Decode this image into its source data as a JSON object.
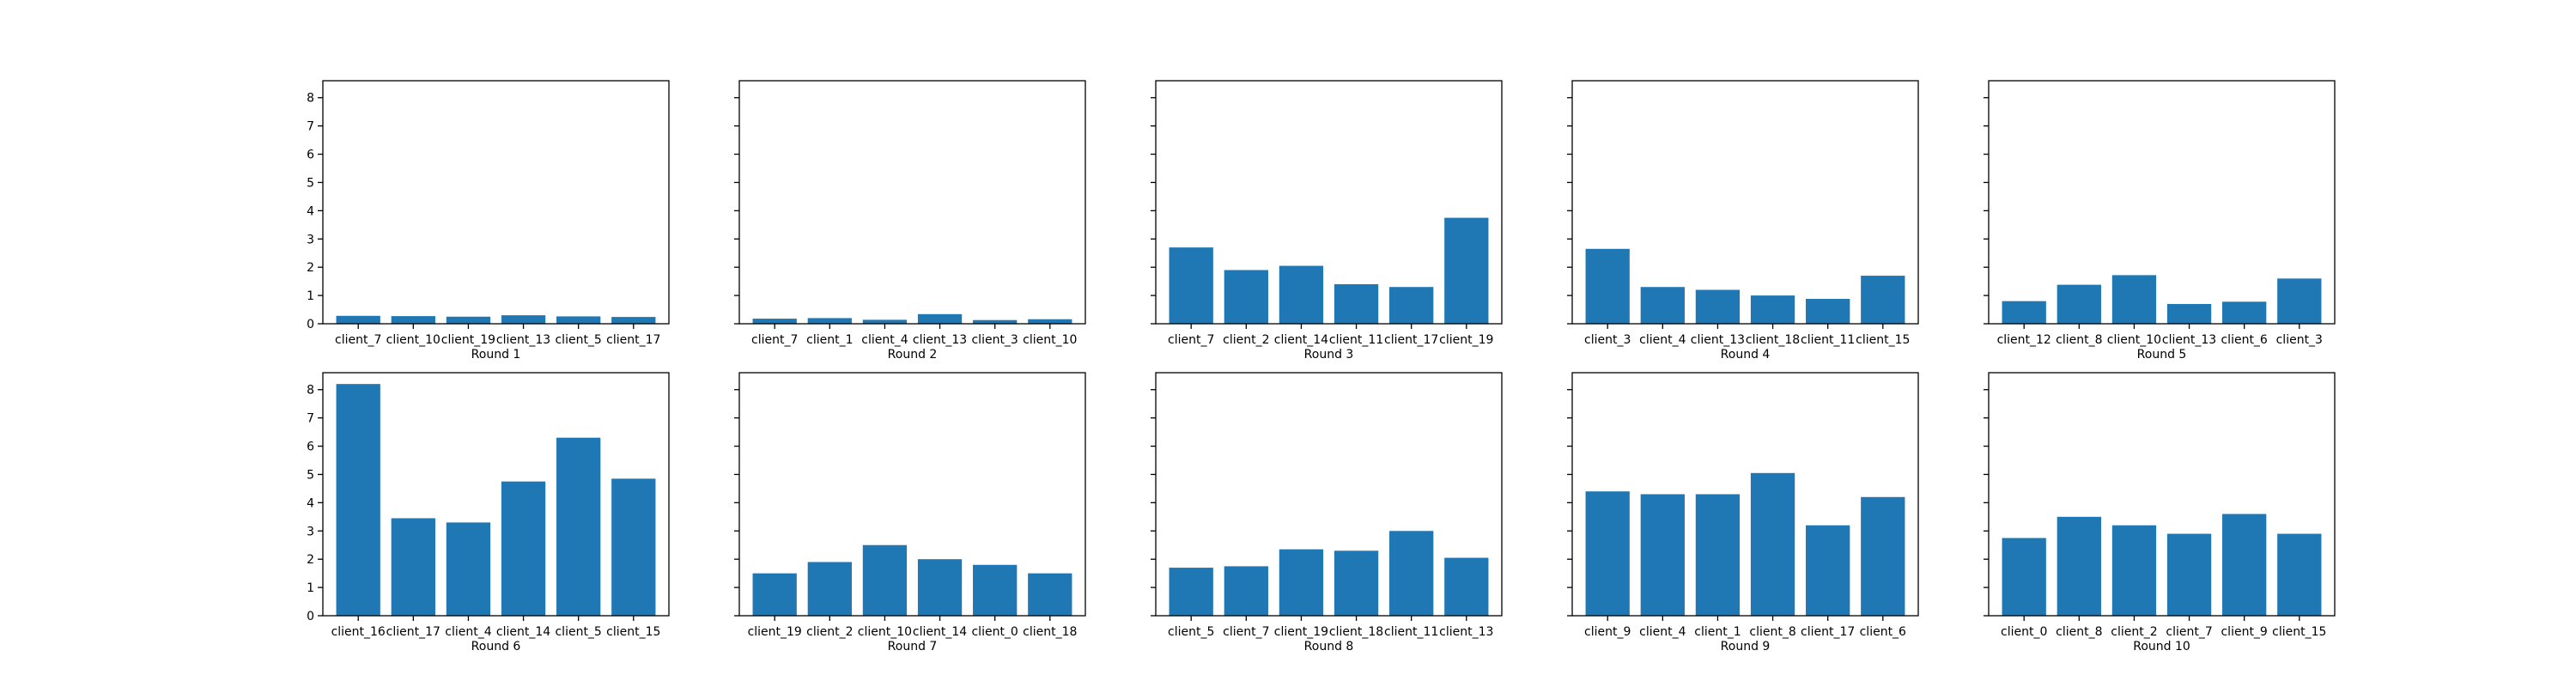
{
  "figure": {
    "bar_color": "#1f77b4",
    "axis_color": "#000000",
    "background": "#ffffff"
  },
  "chart_data": [
    {
      "type": "bar",
      "xlabel": "Round 1",
      "categories": [
        "client_7",
        "client_10",
        "client_19",
        "client_13",
        "client_5",
        "client_17"
      ],
      "values": [
        0.28,
        0.27,
        0.25,
        0.3,
        0.26,
        0.24
      ],
      "ylim": [
        0,
        8.6
      ],
      "yticks": [
        0,
        1,
        2,
        3,
        4,
        5,
        6,
        7,
        8
      ],
      "grid": false
    },
    {
      "type": "bar",
      "xlabel": "Round 2",
      "categories": [
        "client_7",
        "client_1",
        "client_4",
        "client_13",
        "client_3",
        "client_10"
      ],
      "values": [
        0.18,
        0.2,
        0.14,
        0.34,
        0.13,
        0.16
      ],
      "ylim": [
        0,
        8.6
      ],
      "yticks": [
        0,
        1,
        2,
        3,
        4,
        5,
        6,
        7,
        8
      ],
      "grid": false
    },
    {
      "type": "bar",
      "xlabel": "Round 3",
      "categories": [
        "client_7",
        "client_2",
        "client_14",
        "client_11",
        "client_17",
        "client_19"
      ],
      "values": [
        2.7,
        1.9,
        2.05,
        1.4,
        1.3,
        3.75
      ],
      "ylim": [
        0,
        8.6
      ],
      "yticks": [
        0,
        1,
        2,
        3,
        4,
        5,
        6,
        7,
        8
      ],
      "grid": false
    },
    {
      "type": "bar",
      "xlabel": "Round 4",
      "categories": [
        "client_3",
        "client_4",
        "client_13",
        "client_18",
        "client_11",
        "client_15"
      ],
      "values": [
        2.65,
        1.3,
        1.2,
        1.0,
        0.88,
        1.7
      ],
      "ylim": [
        0,
        8.6
      ],
      "yticks": [
        0,
        1,
        2,
        3,
        4,
        5,
        6,
        7,
        8
      ],
      "grid": false
    },
    {
      "type": "bar",
      "xlabel": "Round 5",
      "categories": [
        "client_12",
        "client_8",
        "client_10",
        "client_13",
        "client_6",
        "client_3"
      ],
      "values": [
        0.8,
        1.38,
        1.72,
        0.7,
        0.78,
        1.6
      ],
      "ylim": [
        0,
        8.6
      ],
      "yticks": [
        0,
        1,
        2,
        3,
        4,
        5,
        6,
        7,
        8
      ],
      "grid": false
    },
    {
      "type": "bar",
      "xlabel": "Round 6",
      "categories": [
        "client_16",
        "client_17",
        "client_4",
        "client_14",
        "client_5",
        "client_15"
      ],
      "values": [
        8.2,
        3.45,
        3.3,
        4.75,
        6.3,
        4.85
      ],
      "ylim": [
        0,
        8.6
      ],
      "yticks": [
        0,
        1,
        2,
        3,
        4,
        5,
        6,
        7,
        8
      ],
      "grid": false
    },
    {
      "type": "bar",
      "xlabel": "Round 7",
      "categories": [
        "client_19",
        "client_2",
        "client_10",
        "client_14",
        "client_0",
        "client_18"
      ],
      "values": [
        1.5,
        1.9,
        2.5,
        2.0,
        1.8,
        1.5
      ],
      "ylim": [
        0,
        8.6
      ],
      "yticks": [
        0,
        1,
        2,
        3,
        4,
        5,
        6,
        7,
        8
      ],
      "grid": false
    },
    {
      "type": "bar",
      "xlabel": "Round 8",
      "categories": [
        "client_5",
        "client_7",
        "client_19",
        "client_18",
        "client_11",
        "client_13"
      ],
      "values": [
        1.7,
        1.75,
        2.35,
        2.3,
        3.0,
        2.05
      ],
      "ylim": [
        0,
        8.6
      ],
      "yticks": [
        0,
        1,
        2,
        3,
        4,
        5,
        6,
        7,
        8
      ],
      "grid": false
    },
    {
      "type": "bar",
      "xlabel": "Round 9",
      "categories": [
        "client_9",
        "client_4",
        "client_1",
        "client_8",
        "client_17",
        "client_6"
      ],
      "values": [
        4.4,
        4.3,
        4.3,
        5.05,
        3.2,
        4.2
      ],
      "ylim": [
        0,
        8.6
      ],
      "yticks": [
        0,
        1,
        2,
        3,
        4,
        5,
        6,
        7,
        8
      ],
      "grid": false
    },
    {
      "type": "bar",
      "xlabel": "Round 10",
      "categories": [
        "client_0",
        "client_8",
        "client_2",
        "client_7",
        "client_9",
        "client_15"
      ],
      "values": [
        2.75,
        3.5,
        3.2,
        2.9,
        3.6,
        2.9
      ],
      "ylim": [
        0,
        8.6
      ],
      "yticks": [
        0,
        1,
        2,
        3,
        4,
        5,
        6,
        7,
        8
      ],
      "grid": false
    }
  ]
}
